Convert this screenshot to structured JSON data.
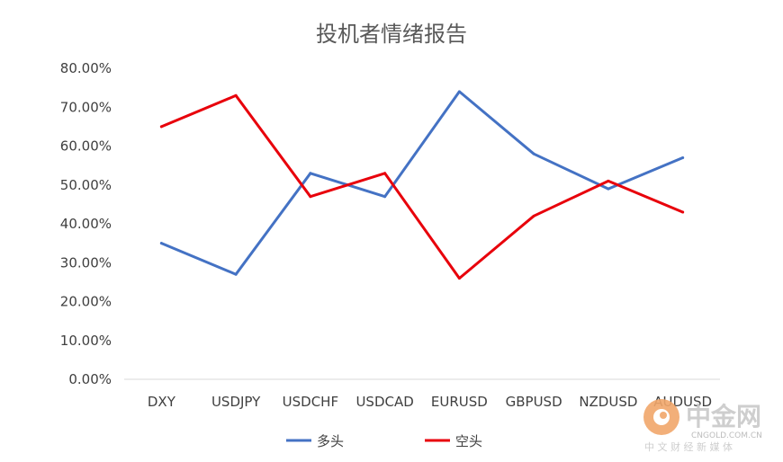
{
  "chart_data": {
    "type": "line",
    "title": "投机者情绪报告",
    "categories": [
      "DXY",
      "USDJPY",
      "USDCHF",
      "USDCAD",
      "EURUSD",
      "GBPUSD",
      "NZDUSD",
      "AUDUSD"
    ],
    "series": [
      {
        "name": "多头",
        "color": "#4472C4",
        "values": [
          35,
          27,
          53,
          47,
          74,
          58,
          49,
          57
        ]
      },
      {
        "name": "空头",
        "color": "#E8000B",
        "values": [
          65,
          73,
          47,
          53,
          26,
          42,
          51,
          43
        ]
      }
    ],
    "ylim": [
      0,
      80
    ],
    "yticks": [
      "0.00%",
      "10.00%",
      "20.00%",
      "30.00%",
      "40.00%",
      "50.00%",
      "60.00%",
      "70.00%",
      "80.00%"
    ],
    "grid": false,
    "legend_position": "bottom"
  },
  "watermark": {
    "brand": "中金网",
    "domain": "CNGOLD.COM.CN",
    "tagline": "中 文 财 经 新 媒 体"
  }
}
